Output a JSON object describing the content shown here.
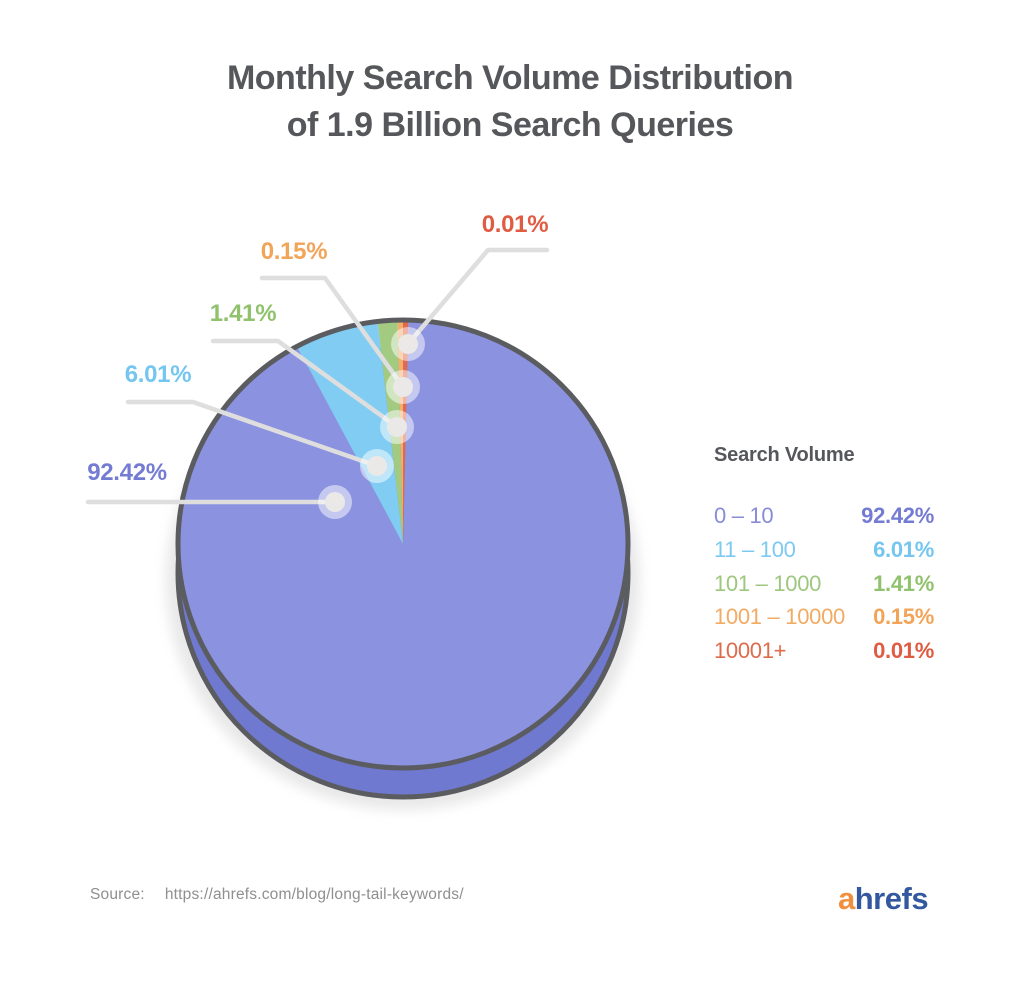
{
  "title": {
    "line1": "Monthly Search Volume Distribution",
    "line2": "of 1.9 Billion Search Queries"
  },
  "chart_data": {
    "type": "pie",
    "style": "3d-pie-with-callouts",
    "title": "Monthly Search Volume Distribution of 1.9 Billion Search Queries",
    "legend_title": "Search Volume",
    "legend_position": "right",
    "categories": [
      "0 – 10",
      "11 – 100",
      "101 – 1000",
      "1001 – 10000",
      "10001+"
    ],
    "values": [
      92.42,
      6.01,
      1.41,
      0.15,
      0.01
    ],
    "value_labels": [
      "92.42%",
      "6.01%",
      "1.41%",
      "0.15%",
      "0.01%"
    ],
    "colors": [
      "#8b93e0",
      "#80ccf2",
      "#a3ca81",
      "#f2ae6b",
      "#e1694e"
    ],
    "callout_colors": [
      "#747bd3",
      "#74c6f0",
      "#90c26e",
      "#f2a458",
      "#df5b41"
    ],
    "legend_label_colors": [
      "#878cd9",
      "#7dc9f1",
      "#9dc77e",
      "#f2ab62",
      "#df6b4b"
    ],
    "side_color": "#7079d0",
    "outline_color": "#5b5c60"
  },
  "source": {
    "label": "Source:",
    "url": "https://ahrefs.com/blog/long-tail-keywords/"
  },
  "logo": {
    "part1": "a",
    "part2": "hrefs",
    "part1_color": "#f0903f",
    "part2_color": "#34589f"
  }
}
